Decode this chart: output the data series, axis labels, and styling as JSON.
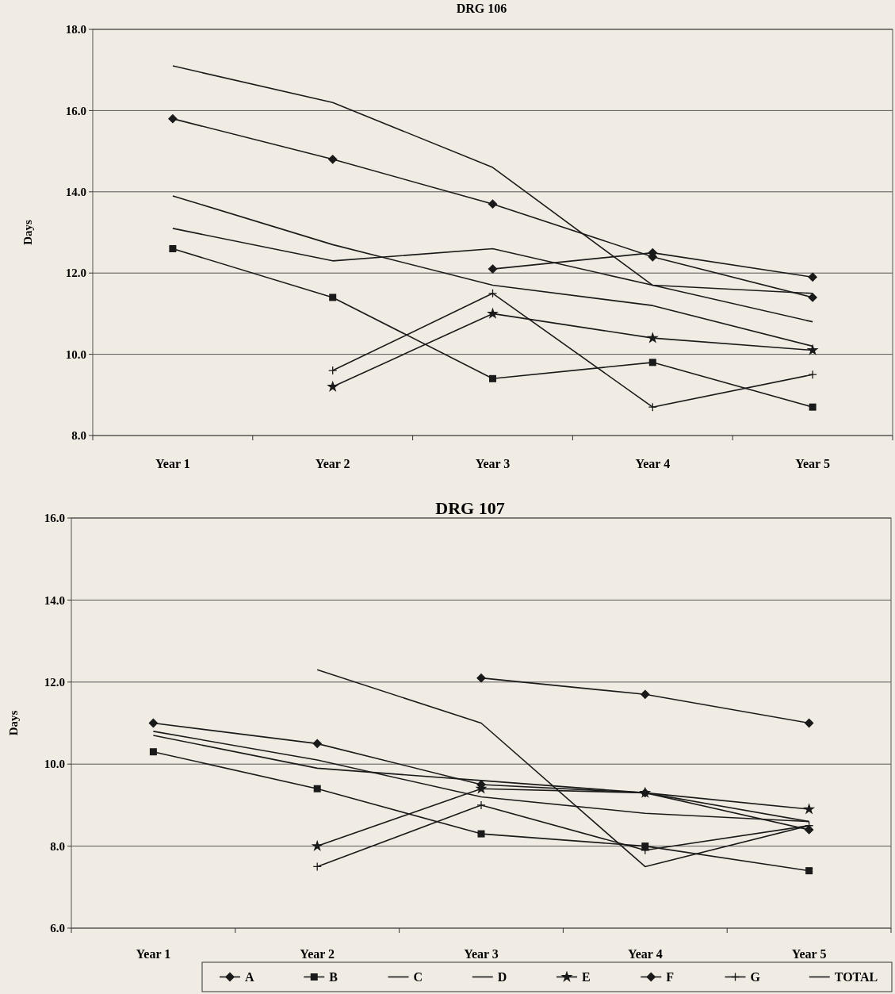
{
  "chart_data": [
    {
      "type": "line",
      "title": "DRG 106",
      "ylabel": "Days",
      "categories": [
        "Year 1",
        "Year 2",
        "Year 3",
        "Year 4",
        "Year 5"
      ],
      "ylim": [
        8,
        18
      ],
      "yticks": [
        {
          "value": 8,
          "label": "8.0"
        },
        {
          "value": 10,
          "label": "10.0"
        },
        {
          "value": 12,
          "label": "12.0"
        },
        {
          "value": 14,
          "label": "14.0"
        },
        {
          "value": 16,
          "label": "16.0"
        },
        {
          "value": 18,
          "label": "18.0"
        }
      ],
      "grid": "y",
      "series": [
        {
          "color": "#1a1a1a",
          "marker": "diamond",
          "values": [
            15.8,
            14.8,
            13.7,
            12.4,
            11.4
          ]
        },
        {
          "color": "#1a1a1a",
          "marker": "square",
          "values": [
            12.6,
            11.4,
            9.4,
            9.8,
            8.7
          ]
        },
        {
          "color": "#1a1a1a",
          "marker": "none",
          "values": [
            13.1,
            12.3,
            12.6,
            11.7,
            10.8
          ]
        },
        {
          "color": "#1a1a1a",
          "marker": "none",
          "values": [
            13.9,
            12.7,
            11.7,
            11.2,
            10.2
          ]
        },
        {
          "color": "#1a1a1a",
          "marker": "star",
          "values": [
            null,
            9.2,
            11.0,
            10.4,
            10.1
          ]
        },
        {
          "color": "#1a1a1a",
          "marker": "diamond",
          "values": [
            null,
            null,
            12.1,
            12.5,
            11.9
          ]
        },
        {
          "color": "#1a1a1a",
          "marker": "cross",
          "values": [
            null,
            9.6,
            11.5,
            8.7,
            9.5
          ]
        },
        {
          "color": "#1a1a1a",
          "marker": "none",
          "values": [
            17.1,
            16.2,
            14.6,
            11.7,
            11.5
          ]
        }
      ]
    },
    {
      "type": "line",
      "title": "DRG 107",
      "ylabel": "Days",
      "categories": [
        "Year 1",
        "Year 2",
        "Year 3",
        "Year 4",
        "Year 5"
      ],
      "ylim": [
        6,
        16
      ],
      "yticks": [
        {
          "value": 6,
          "label": "6.0"
        },
        {
          "value": 8,
          "label": "8.0"
        },
        {
          "value": 10,
          "label": "10.0"
        },
        {
          "value": 12,
          "label": "12.0"
        },
        {
          "value": 14,
          "label": "14.0"
        },
        {
          "value": 16,
          "label": "16.0"
        }
      ],
      "grid": "y",
      "legend": "bottom",
      "series": [
        {
          "name": "A",
          "color": "#1a1a1a",
          "marker": "diamond",
          "values": [
            11.0,
            10.5,
            9.5,
            9.3,
            8.4
          ]
        },
        {
          "name": "B",
          "color": "#1a1a1a",
          "marker": "square",
          "values": [
            10.3,
            9.4,
            8.3,
            8.0,
            7.4
          ]
        },
        {
          "name": "C",
          "color": "#1a1a1a",
          "marker": "none",
          "values": [
            10.8,
            10.1,
            9.2,
            8.8,
            8.6
          ]
        },
        {
          "name": "D",
          "color": "#1a1a1a",
          "marker": "none",
          "values": [
            10.7,
            9.9,
            9.6,
            9.3,
            8.6
          ]
        },
        {
          "name": "E",
          "color": "#1a1a1a",
          "marker": "star",
          "values": [
            null,
            8.0,
            9.4,
            9.3,
            8.9
          ]
        },
        {
          "name": "F",
          "color": "#1a1a1a",
          "marker": "diamond",
          "values": [
            null,
            null,
            12.1,
            11.7,
            11.0
          ]
        },
        {
          "name": "G",
          "color": "#1a1a1a",
          "marker": "cross",
          "values": [
            null,
            7.5,
            9.0,
            7.9,
            8.5
          ]
        },
        {
          "name": "TOTAL",
          "color": "#1a1a1a",
          "marker": "none",
          "values": [
            null,
            12.3,
            11.0,
            7.5,
            8.5
          ]
        }
      ]
    }
  ]
}
